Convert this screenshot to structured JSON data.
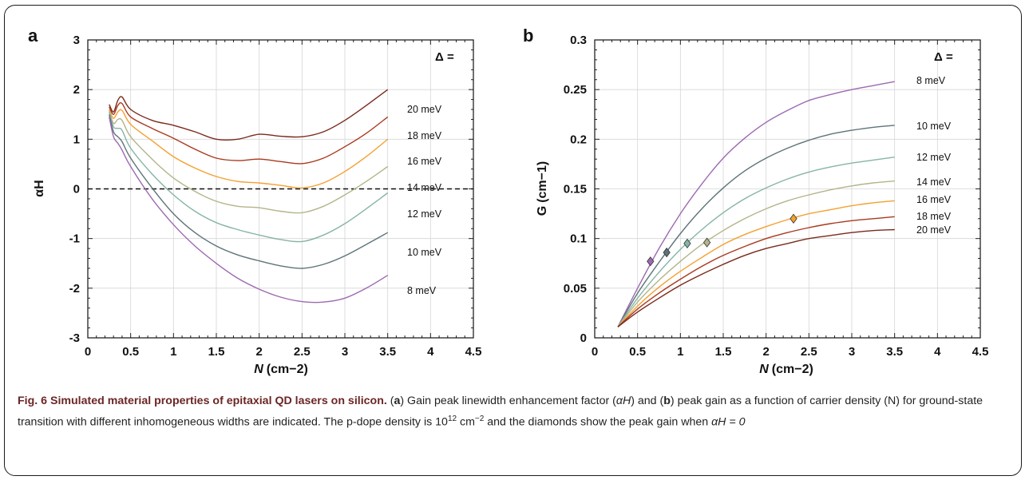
{
  "chart_data": [
    {
      "type": "line",
      "panel": "a",
      "xlabel": "N",
      "xunit": "(cm−2)",
      "ylabel": "αH",
      "xlim": [
        0,
        4.5
      ],
      "ylim": [
        -3,
        3
      ],
      "xticks": [
        "0",
        "0.5",
        "1",
        "1.5",
        "2",
        "2.5",
        "3",
        "3.5",
        "4",
        "4.5"
      ],
      "yticks": [
        "-3",
        "-2",
        "-1",
        "0",
        "1",
        "2",
        "3"
      ],
      "legend_title": "Δ =",
      "reference_line": {
        "y": 0,
        "style": "dashed"
      },
      "series": [
        {
          "name": "20 meV",
          "color": "#7a2a1c",
          "x": [
            0.25,
            0.3,
            0.35,
            0.4,
            0.5,
            0.75,
            1.0,
            1.25,
            1.5,
            1.75,
            2.0,
            2.25,
            2.5,
            2.75,
            3.0,
            3.25,
            3.5
          ],
          "y": [
            1.7,
            1.55,
            1.78,
            1.85,
            1.6,
            1.38,
            1.28,
            1.15,
            1.0,
            1.0,
            1.1,
            1.06,
            1.05,
            1.15,
            1.38,
            1.68,
            2.0
          ]
        },
        {
          "name": "18 meV",
          "color": "#a83a1f",
          "x": [
            0.25,
            0.3,
            0.35,
            0.4,
            0.5,
            0.75,
            1.0,
            1.25,
            1.5,
            1.75,
            2.0,
            2.25,
            2.5,
            2.75,
            3.0,
            3.25,
            3.5
          ],
          "y": [
            1.65,
            1.5,
            1.68,
            1.72,
            1.45,
            1.22,
            1.02,
            0.8,
            0.62,
            0.57,
            0.6,
            0.55,
            0.51,
            0.62,
            0.85,
            1.12,
            1.45
          ]
        },
        {
          "name": "16 meV",
          "color": "#f5a030",
          "x": [
            0.25,
            0.3,
            0.35,
            0.4,
            0.5,
            0.75,
            1.0,
            1.25,
            1.5,
            1.75,
            2.0,
            2.25,
            2.5,
            2.75,
            3.0,
            3.25,
            3.5
          ],
          "y": [
            1.6,
            1.42,
            1.55,
            1.58,
            1.3,
            0.97,
            0.65,
            0.42,
            0.25,
            0.15,
            0.12,
            0.07,
            0.02,
            0.12,
            0.35,
            0.65,
            1.0
          ]
        },
        {
          "name": "14 meV",
          "color": "#b4b48a",
          "x": [
            0.25,
            0.3,
            0.35,
            0.4,
            0.5,
            0.75,
            1.0,
            1.25,
            1.5,
            1.75,
            2.0,
            2.25,
            2.5,
            2.75,
            3.0,
            3.25,
            3.5
          ],
          "y": [
            1.58,
            1.32,
            1.4,
            1.38,
            1.05,
            0.6,
            0.22,
            -0.05,
            -0.25,
            -0.35,
            -0.38,
            -0.45,
            -0.48,
            -0.35,
            -0.12,
            0.15,
            0.45
          ]
        },
        {
          "name": "12 meV",
          "color": "#86b4a6",
          "x": [
            0.25,
            0.3,
            0.35,
            0.4,
            0.5,
            0.75,
            1.0,
            1.25,
            1.5,
            1.75,
            2.0,
            2.25,
            2.5,
            2.75,
            3.0,
            3.25,
            3.5
          ],
          "y": [
            1.55,
            1.25,
            1.22,
            1.18,
            0.82,
            0.3,
            -0.12,
            -0.45,
            -0.68,
            -0.82,
            -0.93,
            -1.02,
            -1.06,
            -0.93,
            -0.7,
            -0.4,
            -0.08
          ]
        },
        {
          "name": "10 meV",
          "color": "#5d7478",
          "x": [
            0.25,
            0.3,
            0.35,
            0.4,
            0.5,
            0.75,
            1.0,
            1.25,
            1.5,
            1.75,
            2.0,
            2.25,
            2.5,
            2.75,
            3.0,
            3.25,
            3.5
          ],
          "y": [
            1.5,
            1.15,
            1.05,
            0.95,
            0.62,
            0.02,
            -0.5,
            -0.88,
            -1.15,
            -1.33,
            -1.45,
            -1.55,
            -1.6,
            -1.52,
            -1.35,
            -1.12,
            -0.88
          ]
        },
        {
          "name": "8 meV",
          "color": "#9c6ab0",
          "x": [
            0.25,
            0.3,
            0.35,
            0.4,
            0.5,
            0.75,
            1.0,
            1.25,
            1.5,
            1.75,
            2.0,
            2.25,
            2.5,
            2.75,
            3.0,
            3.25,
            3.5
          ],
          "y": [
            1.45,
            1.05,
            0.92,
            0.78,
            0.45,
            -0.2,
            -0.72,
            -1.15,
            -1.5,
            -1.8,
            -2.02,
            -2.18,
            -2.27,
            -2.28,
            -2.2,
            -2.0,
            -1.74
          ]
        }
      ]
    },
    {
      "type": "line",
      "panel": "b",
      "xlabel": "N",
      "xunit": "(cm−2)",
      "ylabel": "G",
      "yunit": "(cm−1)",
      "xlim": [
        0,
        4.5
      ],
      "ylim": [
        0,
        0.3
      ],
      "xticks": [
        "0",
        "0.5",
        "1",
        "1.5",
        "2",
        "2.5",
        "3",
        "3.5",
        "4",
        "4.5"
      ],
      "yticks": [
        "0",
        "0.05",
        "0.1",
        "0.15",
        "0.2",
        "0.25",
        "0.3"
      ],
      "legend_title": "Δ =",
      "series": [
        {
          "name": "8 meV",
          "color": "#9c6ab0",
          "x": [
            0.27,
            0.5,
            0.75,
            1.0,
            1.25,
            1.5,
            1.75,
            2.0,
            2.25,
            2.5,
            2.75,
            3.0,
            3.25,
            3.5
          ],
          "y": [
            0.011,
            0.05,
            0.09,
            0.125,
            0.155,
            0.181,
            0.201,
            0.217,
            0.229,
            0.239,
            0.245,
            0.25,
            0.254,
            0.258
          ],
          "marker": {
            "x": 0.65,
            "y": 0.077
          }
        },
        {
          "name": "10 meV",
          "color": "#5d7478",
          "x": [
            0.27,
            0.5,
            0.75,
            1.0,
            1.25,
            1.5,
            1.75,
            2.0,
            2.25,
            2.5,
            2.75,
            3.0,
            3.25,
            3.5
          ],
          "y": [
            0.011,
            0.045,
            0.076,
            0.105,
            0.13,
            0.151,
            0.168,
            0.181,
            0.191,
            0.199,
            0.205,
            0.209,
            0.212,
            0.214
          ],
          "marker": {
            "x": 0.84,
            "y": 0.086
          }
        },
        {
          "name": "12 meV",
          "color": "#86b4a6",
          "x": [
            0.27,
            0.5,
            0.75,
            1.0,
            1.25,
            1.5,
            1.75,
            2.0,
            2.25,
            2.5,
            2.75,
            3.0,
            3.25,
            3.5
          ],
          "y": [
            0.011,
            0.04,
            0.066,
            0.089,
            0.109,
            0.126,
            0.14,
            0.151,
            0.16,
            0.167,
            0.172,
            0.176,
            0.179,
            0.182
          ],
          "marker": {
            "x": 1.08,
            "y": 0.095
          }
        },
        {
          "name": "14 meV",
          "color": "#b4b48a",
          "x": [
            0.27,
            0.5,
            0.75,
            1.0,
            1.25,
            1.5,
            1.75,
            2.0,
            2.25,
            2.5,
            2.75,
            3.0,
            3.25,
            3.5
          ],
          "y": [
            0.011,
            0.036,
            0.058,
            0.077,
            0.094,
            0.108,
            0.12,
            0.13,
            0.138,
            0.144,
            0.149,
            0.153,
            0.156,
            0.158
          ],
          "marker": {
            "x": 1.31,
            "y": 0.096
          }
        },
        {
          "name": "16 meV",
          "color": "#f5a030",
          "x": [
            0.27,
            0.5,
            0.75,
            1.0,
            1.25,
            1.5,
            1.75,
            2.0,
            2.25,
            2.5,
            2.75,
            3.0,
            3.25,
            3.5
          ],
          "y": [
            0.011,
            0.032,
            0.051,
            0.067,
            0.081,
            0.094,
            0.104,
            0.112,
            0.119,
            0.125,
            0.129,
            0.133,
            0.136,
            0.138
          ],
          "marker": {
            "x": 2.32,
            "y": 0.12
          }
        },
        {
          "name": "18 meV",
          "color": "#a83a1f",
          "x": [
            0.27,
            0.5,
            0.75,
            1.0,
            1.25,
            1.5,
            1.75,
            2.0,
            2.25,
            2.5,
            2.75,
            3.0,
            3.25,
            3.5
          ],
          "y": [
            0.011,
            0.029,
            0.045,
            0.059,
            0.072,
            0.083,
            0.092,
            0.1,
            0.106,
            0.111,
            0.115,
            0.118,
            0.12,
            0.122
          ]
        },
        {
          "name": "20 meV",
          "color": "#7a2a1c",
          "x": [
            0.27,
            0.5,
            0.75,
            1.0,
            1.25,
            1.5,
            1.75,
            2.0,
            2.25,
            2.5,
            2.75,
            3.0,
            3.25,
            3.5
          ],
          "y": [
            0.011,
            0.026,
            0.04,
            0.053,
            0.064,
            0.074,
            0.083,
            0.09,
            0.095,
            0.1,
            0.103,
            0.106,
            0.108,
            0.109
          ]
        }
      ]
    }
  ],
  "caption": {
    "title": "Fig. 6 Simulated material properties of epitaxial QD lasers on silicon.",
    "p1": " (",
    "a": "a",
    "p2": ") Gain peak linewidth enhancement factor (",
    "alphaH1": "αH",
    "p3": ") and (",
    "b": "b",
    "p4": ") peak gain as a function of carrier density (N) for ground-state transition with different inhomogeneous widths are indicated. The p-dope density is 10",
    "exp12": "12",
    "p5": " cm",
    "expm2": "−2",
    "p6": " and the diamonds show the peak gain when ",
    "alphaH2": "αH = 0"
  }
}
